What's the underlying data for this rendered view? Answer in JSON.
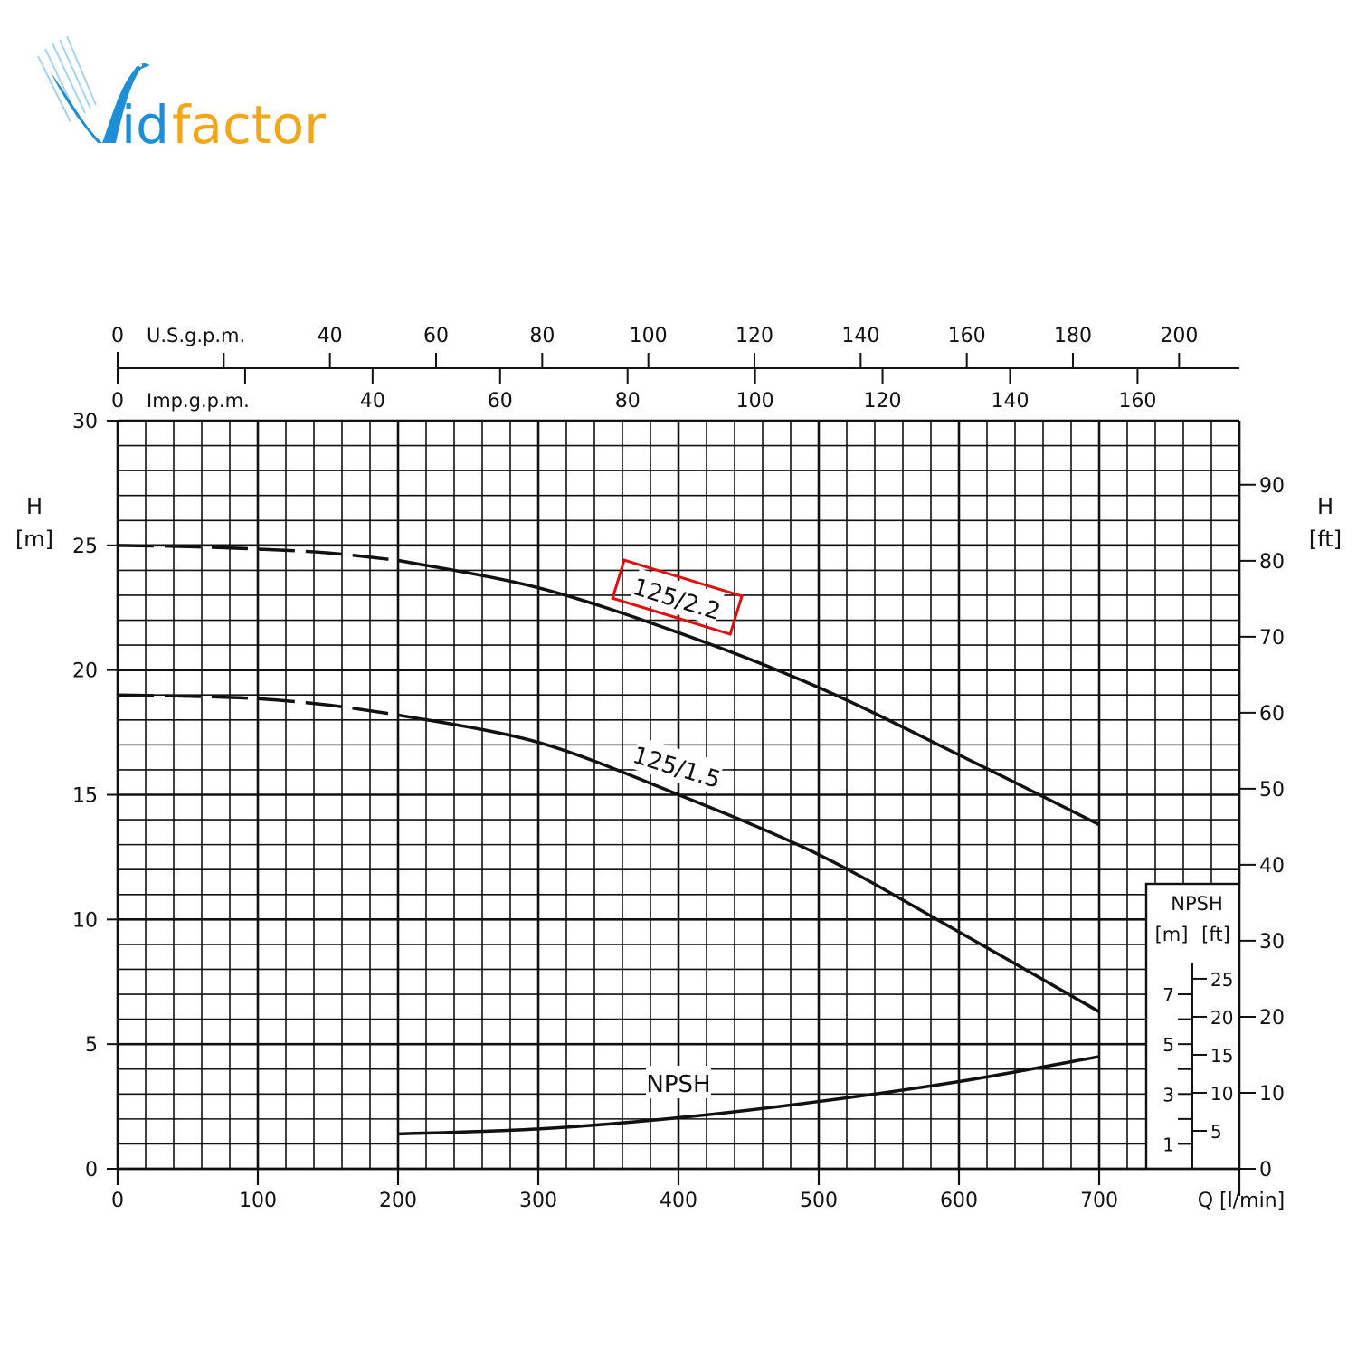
{
  "logo": {
    "text": "Vidfactor",
    "colors": {
      "V": "#1e8fd6",
      "id": "#1e8fd6",
      "factor": "#f2a71b"
    }
  },
  "chart_data": {
    "type": "line",
    "title": "",
    "xlabel": "Q [l/min]",
    "ylabel": "H [m]",
    "ylabel_right": "H [ft]",
    "xlim": [
      0,
      800
    ],
    "ylim": [
      0,
      30
    ],
    "grid": true,
    "x_ticks": [
      0,
      100,
      200,
      300,
      400,
      500,
      600,
      700
    ],
    "y_ticks": [
      0,
      5,
      10,
      15,
      20,
      25,
      30
    ],
    "right_axis": {
      "label": "H [ft]",
      "ticks": [
        0,
        10,
        20,
        30,
        40,
        50,
        60,
        70,
        80,
        90
      ]
    },
    "top_axes": [
      {
        "label": "U.S.g.p.m.",
        "ticks": [
          0,
          40,
          60,
          80,
          100,
          120,
          140,
          160,
          180,
          200
        ],
        "minor_ticks": [
          20
        ],
        "lpm_per_unit": 3.785
      },
      {
        "label": "Imp.g.p.m.",
        "ticks": [
          0,
          40,
          60,
          80,
          100,
          120,
          140,
          160
        ],
        "minor_ticks": [
          20
        ],
        "lpm_per_unit": 4.546
      }
    ],
    "npsh_inset": {
      "title": "NPSH",
      "unit_m": "[m]",
      "unit_ft": "[ft]",
      "m_ticks": [
        1,
        3,
        5,
        7
      ],
      "ft_ticks": [
        5,
        10,
        15,
        20,
        25
      ]
    },
    "series": [
      {
        "name": "125/2.2",
        "highlight_color": "#e01010",
        "dashed_until": 200,
        "x": [
          0,
          50,
          100,
          150,
          200,
          300,
          400,
          500,
          600,
          700
        ],
        "y": [
          25.0,
          24.95,
          24.85,
          24.7,
          24.4,
          23.3,
          21.5,
          19.3,
          16.6,
          13.8
        ]
      },
      {
        "name": "125/1.5",
        "dashed_until": 200,
        "x": [
          0,
          50,
          100,
          150,
          200,
          300,
          400,
          500,
          600,
          700
        ],
        "y": [
          19.0,
          18.95,
          18.85,
          18.6,
          18.2,
          17.1,
          15.0,
          12.6,
          9.5,
          6.3
        ]
      },
      {
        "name": "NPSH",
        "x": [
          200,
          300,
          400,
          500,
          600,
          700
        ],
        "y": [
          1.4,
          1.6,
          2.05,
          2.7,
          3.5,
          4.5
        ]
      }
    ]
  }
}
